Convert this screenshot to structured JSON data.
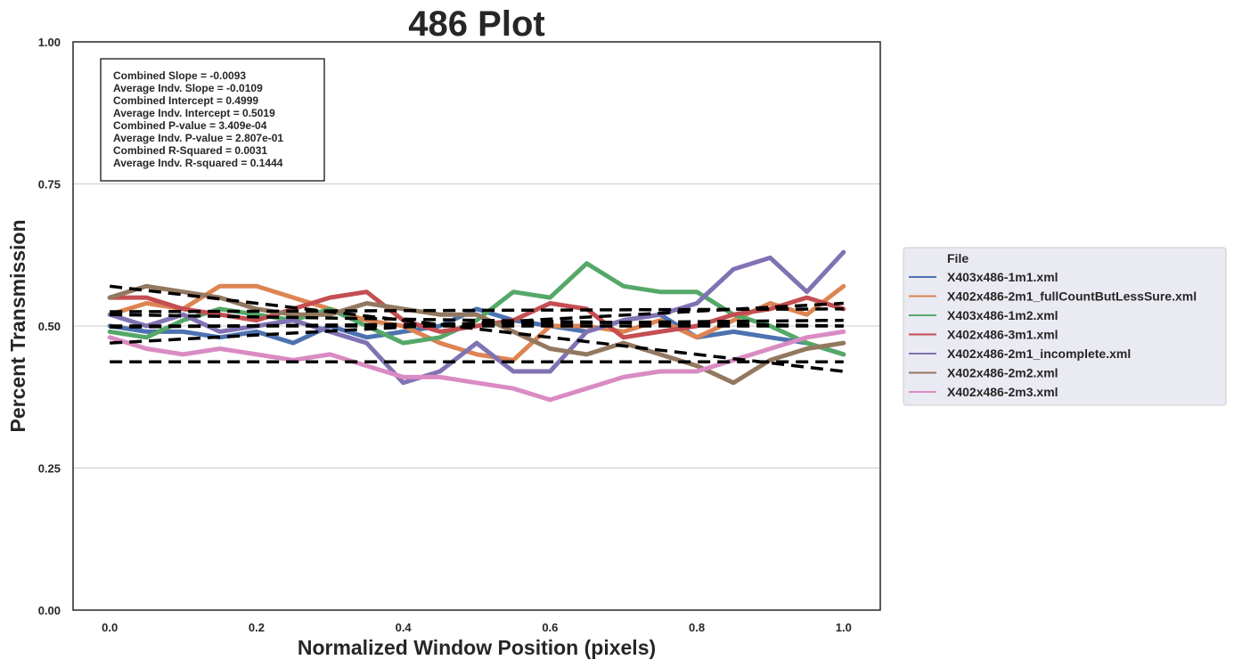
{
  "chart_data": {
    "type": "line",
    "title": "486 Plot",
    "xlabel": "Normalized Window Position (pixels)",
    "ylabel": "Percent Transmission",
    "xlim": [
      -0.05,
      1.05
    ],
    "ylim": [
      0.0,
      1.0
    ],
    "xticks": [
      0.0,
      0.2,
      0.4,
      0.6,
      0.8,
      1.0
    ],
    "xtick_labels": [
      "0.0",
      "0.2",
      "0.4",
      "0.6",
      "0.8",
      "1.0"
    ],
    "yticks": [
      0.0,
      0.25,
      0.5,
      0.75,
      1.0
    ],
    "ytick_labels": [
      "0.00",
      "0.25",
      "0.50",
      "0.75",
      "1.00"
    ],
    "grid": "horizontal",
    "legend": {
      "title": "File",
      "placement": "outside-right",
      "entries": [
        "X403x486-1m1.xml",
        "X402x486-2m1_fullCountButLessSure.xml",
        "X403x486-1m2.xml",
        "X402x486-3m1.xml",
        "X402x486-2m1_incomplete.xml",
        "X402x486-2m2.xml",
        "X402x486-2m3.xml"
      ]
    },
    "annotation": [
      "Combined Slope = -0.0093",
      "Average Indv. Slope = -0.0109",
      "Combined Intercept = 0.4999",
      "Average Indv. Intercept = 0.5019",
      "Combined P-value = 3.409e-04",
      "Average Indv. P-value = 2.807e-01",
      "Combined R-Squared = 0.0031",
      "Average Indv. R-squared = 0.1444"
    ],
    "series": [
      {
        "name": "X403x486-1m1.xml",
        "color": "#4c72b0",
        "x": [
          0.0,
          0.05,
          0.1,
          0.15,
          0.2,
          0.25,
          0.3,
          0.35,
          0.4,
          0.45,
          0.5,
          0.55,
          0.6,
          0.65,
          0.7,
          0.75,
          0.8,
          0.85,
          0.9,
          0.95,
          1.0
        ],
        "y": [
          0.5,
          0.49,
          0.49,
          0.48,
          0.49,
          0.47,
          0.5,
          0.48,
          0.49,
          0.5,
          0.53,
          0.51,
          0.5,
          0.49,
          0.51,
          0.52,
          0.48,
          0.49,
          0.48,
          0.47,
          0.45
        ]
      },
      {
        "name": "X402x486-2m1_fullCountButLessSure.xml",
        "color": "#dd8452",
        "x": [
          0.0,
          0.05,
          0.1,
          0.15,
          0.2,
          0.25,
          0.3,
          0.35,
          0.4,
          0.45,
          0.5,
          0.55,
          0.6,
          0.65,
          0.7,
          0.75,
          0.8,
          0.85,
          0.9,
          0.95,
          1.0
        ],
        "y": [
          0.52,
          0.54,
          0.53,
          0.57,
          0.57,
          0.55,
          0.53,
          0.51,
          0.5,
          0.47,
          0.45,
          0.44,
          0.5,
          0.5,
          0.49,
          0.51,
          0.48,
          0.51,
          0.54,
          0.52,
          0.57
        ]
      },
      {
        "name": "X403x486-1m2.xml",
        "color": "#55a868",
        "x": [
          0.0,
          0.05,
          0.1,
          0.15,
          0.2,
          0.25,
          0.3,
          0.35,
          0.4,
          0.45,
          0.5,
          0.55,
          0.6,
          0.65,
          0.7,
          0.75,
          0.8,
          0.85,
          0.9,
          0.95,
          1.0
        ],
        "y": [
          0.49,
          0.48,
          0.51,
          0.53,
          0.52,
          0.51,
          0.53,
          0.5,
          0.47,
          0.48,
          0.51,
          0.56,
          0.55,
          0.61,
          0.57,
          0.56,
          0.56,
          0.52,
          0.5,
          0.47,
          0.45
        ]
      },
      {
        "name": "X402x486-3m1.xml",
        "color": "#c44e52",
        "x": [
          0.0,
          0.05,
          0.1,
          0.15,
          0.2,
          0.25,
          0.3,
          0.35,
          0.4,
          0.45,
          0.5,
          0.55,
          0.6,
          0.65,
          0.7,
          0.75,
          0.8,
          0.85,
          0.9,
          0.95,
          1.0
        ],
        "y": [
          0.55,
          0.55,
          0.53,
          0.52,
          0.51,
          0.53,
          0.55,
          0.56,
          0.51,
          0.49,
          0.5,
          0.51,
          0.54,
          0.53,
          0.48,
          0.49,
          0.5,
          0.52,
          0.53,
          0.55,
          0.53
        ]
      },
      {
        "name": "X402x486-2m1_incomplete.xml",
        "color": "#8172b3",
        "x": [
          0.0,
          0.05,
          0.1,
          0.15,
          0.2,
          0.25,
          0.3,
          0.35,
          0.4,
          0.45,
          0.5,
          0.55,
          0.6,
          0.65,
          0.7,
          0.75,
          0.8,
          0.85,
          0.9,
          0.95,
          1.0
        ],
        "y": [
          0.52,
          0.5,
          0.52,
          0.49,
          0.5,
          0.51,
          0.49,
          0.47,
          0.4,
          0.42,
          0.47,
          0.42,
          0.42,
          0.49,
          0.51,
          0.52,
          0.54,
          0.6,
          0.62,
          0.56,
          0.63
        ]
      },
      {
        "name": "X402x486-2m2.xml",
        "color": "#937860",
        "x": [
          0.0,
          0.05,
          0.1,
          0.15,
          0.2,
          0.25,
          0.3,
          0.35,
          0.4,
          0.45,
          0.5,
          0.55,
          0.6,
          0.65,
          0.7,
          0.75,
          0.8,
          0.85,
          0.9,
          0.95,
          1.0
        ],
        "y": [
          0.55,
          0.57,
          0.56,
          0.55,
          0.53,
          0.52,
          0.52,
          0.54,
          0.53,
          0.52,
          0.52,
          0.49,
          0.46,
          0.45,
          0.47,
          0.45,
          0.43,
          0.4,
          0.44,
          0.46,
          0.47
        ]
      },
      {
        "name": "X402x486-2m3.xml",
        "color": "#da8bc3",
        "x": [
          0.0,
          0.05,
          0.1,
          0.15,
          0.2,
          0.25,
          0.3,
          0.35,
          0.4,
          0.45,
          0.5,
          0.55,
          0.6,
          0.65,
          0.7,
          0.75,
          0.8,
          0.85,
          0.9,
          0.95,
          1.0
        ],
        "y": [
          0.48,
          0.46,
          0.45,
          0.46,
          0.45,
          0.44,
          0.45,
          0.43,
          0.41,
          0.41,
          0.4,
          0.39,
          0.37,
          0.39,
          0.41,
          0.42,
          0.42,
          0.44,
          0.46,
          0.48,
          0.49
        ]
      }
    ],
    "trendlines": [
      {
        "style": "dashed",
        "color": "#000000",
        "x": [
          0.0,
          1.0
        ],
        "y": [
          0.57,
          0.42
        ]
      },
      {
        "style": "dashed",
        "color": "#000000",
        "x": [
          0.0,
          1.0
        ],
        "y": [
          0.52,
          0.5
        ]
      },
      {
        "style": "dashed",
        "color": "#000000",
        "x": [
          0.0,
          1.0
        ],
        "y": [
          0.5,
          0.5
        ]
      },
      {
        "style": "dashed",
        "color": "#000000",
        "x": [
          0.0,
          1.0
        ],
        "y": [
          0.498,
          0.51
        ]
      },
      {
        "style": "dashed",
        "color": "#000000",
        "x": [
          0.0,
          1.0
        ],
        "y": [
          0.47,
          0.54
        ]
      },
      {
        "style": "dashed",
        "color": "#000000",
        "x": [
          0.0,
          1.0
        ],
        "y": [
          0.525,
          0.53
        ]
      },
      {
        "style": "dashed",
        "color": "#000000",
        "x": [
          0.0,
          1.0
        ],
        "y": [
          0.437,
          0.437
        ]
      }
    ]
  }
}
